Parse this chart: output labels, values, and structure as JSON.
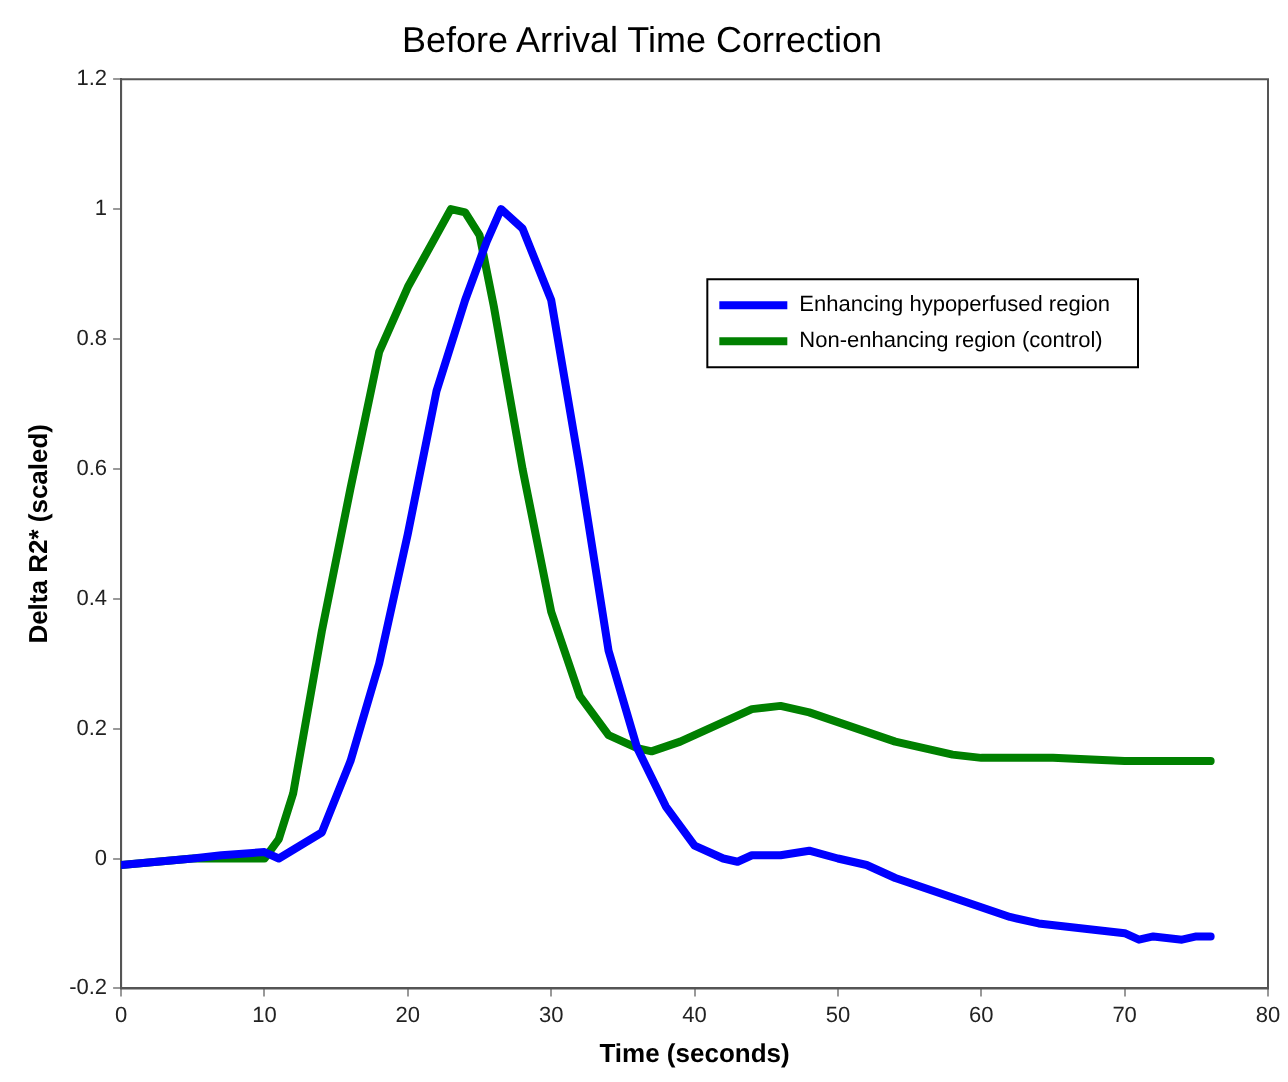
{
  "chart_data": {
    "type": "line",
    "title": "Before Arrival Time Correction",
    "xlabel": "Time (seconds)",
    "ylabel": "Delta R2* (scaled)",
    "xlim": [
      0,
      80
    ],
    "xticks": [
      0,
      10,
      20,
      30,
      40,
      50,
      60,
      70,
      80
    ],
    "ylim": [
      -0.2,
      1.2
    ],
    "yticks": [
      -0.2,
      0,
      0.2,
      0.4,
      0.6,
      0.8,
      1,
      1.2
    ],
    "grid": false,
    "legend": "top right",
    "marker": "none",
    "line_style": "solid",
    "series": [
      {
        "name": "Enhancing hypoperfused region",
        "color": "#0000ff",
        "x": [
          0,
          5,
          7,
          10,
          11,
          14,
          16,
          18,
          20,
          22,
          24,
          25.5,
          26.5,
          28,
          30,
          32,
          34,
          36,
          38,
          40,
          42,
          43,
          44,
          46,
          48,
          50,
          52,
          54,
          56,
          58,
          60,
          62,
          64,
          66,
          68,
          70,
          71,
          72,
          74,
          75,
          76
        ],
        "values": [
          -0.01,
          0,
          0.005,
          0.01,
          0,
          0.04,
          0.15,
          0.3,
          0.5,
          0.72,
          0.86,
          0.95,
          1,
          0.97,
          0.86,
          0.6,
          0.32,
          0.17,
          0.08,
          0.02,
          0,
          -0.005,
          0.005,
          0.005,
          0.012,
          0,
          -0.01,
          -0.03,
          -0.045,
          -0.06,
          -0.075,
          -0.09,
          -0.1,
          -0.105,
          -0.11,
          -0.115,
          -0.125,
          -0.12,
          -0.125,
          -0.12,
          -0.12
        ]
      },
      {
        "name": "Non-enhancing region (control)",
        "color": "#008000",
        "x": [
          0,
          5,
          10,
          11,
          12,
          14,
          16,
          18,
          20,
          22,
          23,
          24,
          25,
          26,
          28,
          30,
          32,
          34,
          36,
          37,
          39,
          42,
          44,
          46,
          48,
          50,
          52,
          54,
          56,
          58,
          60,
          65,
          70,
          76
        ],
        "values": [
          -0.01,
          0,
          0,
          0.03,
          0.1,
          0.35,
          0.57,
          0.78,
          0.88,
          0.96,
          1,
          0.995,
          0.96,
          0.85,
          0.6,
          0.38,
          0.25,
          0.19,
          0.17,
          0.165,
          0.18,
          0.21,
          0.23,
          0.235,
          0.225,
          0.21,
          0.195,
          0.18,
          0.17,
          0.16,
          0.155,
          0.155,
          0.15,
          0.15
        ]
      }
    ]
  }
}
